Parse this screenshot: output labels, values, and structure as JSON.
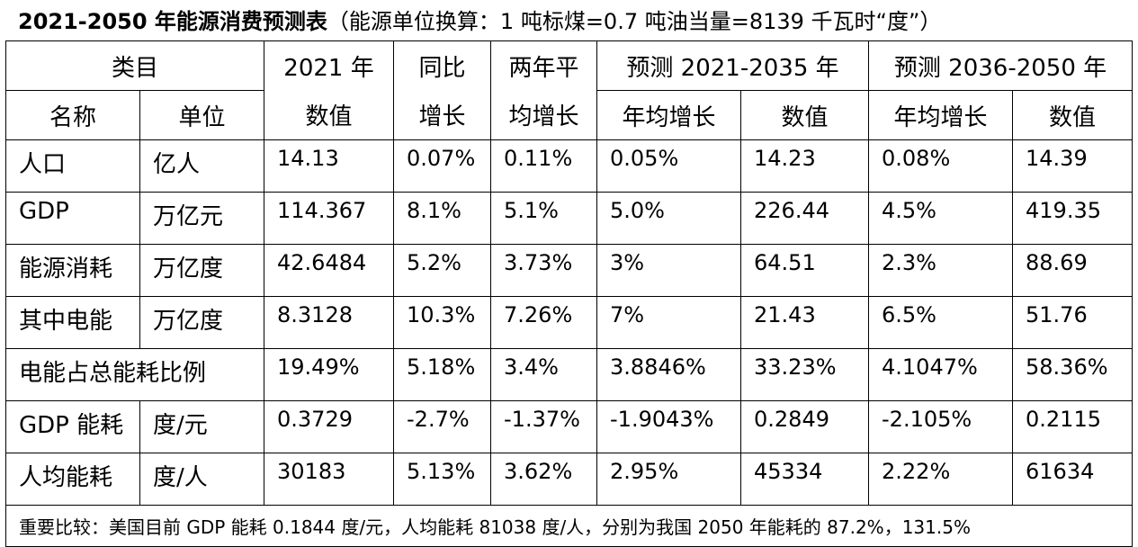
{
  "title": {
    "main": "2021-2050 年能源消费预测表",
    "note": "（能源单位换算：1 吨标煤=0.7 吨油当量=8139 千瓦时“度”）"
  },
  "table": {
    "header": [
      [
        "类目",
        "2021 年",
        "同比",
        "两年平",
        "预测 2021-2035 年",
        "预测 2036-2050 年"
      ],
      [
        "名称",
        "单位",
        "数值",
        "增长",
        "均增长",
        "年均增长",
        "数值",
        "年均增长",
        "数值"
      ]
    ],
    "rows": [
      [
        "人口",
        "亿人",
        "14.13",
        "0.07%",
        "0.11%",
        "0.05%",
        "14.23",
        "0.08%",
        "14.39"
      ],
      [
        "GDP",
        "万亿元",
        "114.367",
        "8.1%",
        "5.1%",
        "5.0%",
        "226.44",
        "4.5%",
        "419.35"
      ],
      [
        "能源消耗",
        "万亿度",
        "42.6484",
        "5.2%",
        "3.73%",
        "3%",
        "64.51",
        "2.3%",
        "88.69"
      ],
      [
        "其中电能",
        "万亿度",
        "8.3128",
        "10.3%",
        "7.26%",
        "7%",
        "21.43",
        "6.5%",
        "51.76"
      ],
      [
        "电能占总能耗比例",
        "19.49%",
        "5.18%",
        "3.4%",
        "3.8846%",
        "33.23%",
        "4.1047%",
        "58.36%"
      ],
      [
        "GDP 能耗",
        "度/元",
        "0.3729",
        "-2.7%",
        "-1.37%",
        "-1.9043%",
        "0.2849",
        "-2.105%",
        "0.2115"
      ],
      [
        "人均能耗",
        "度/人",
        "30183",
        "5.13%",
        "3.62%",
        "2.95%",
        "45334",
        "2.22%",
        "61634"
      ]
    ],
    "footer": "重要比较：美国目前 GDP 能耗 0.1844 度/元，人均能耗 81038 度/人，分别为我国 2050 年能耗的 87.2%，131.5%"
  }
}
